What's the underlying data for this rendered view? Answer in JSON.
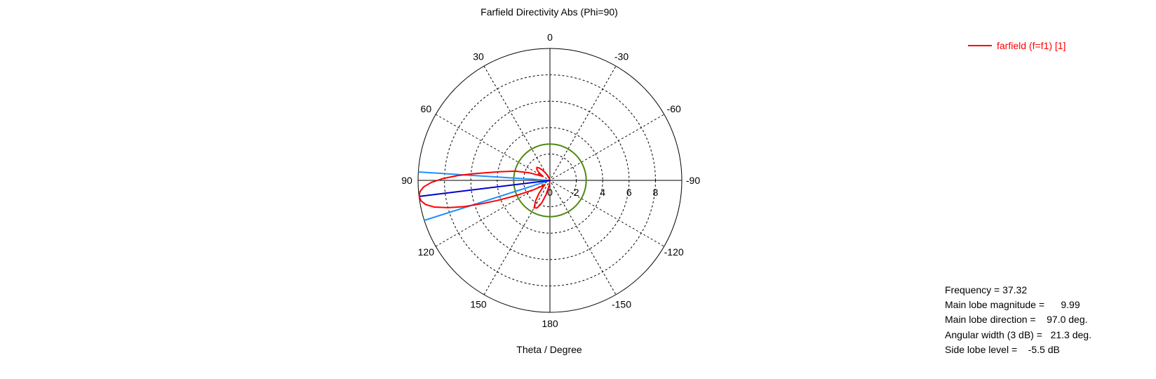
{
  "chart_data": {
    "type": "polar",
    "title": "Farfield Directivity Abs (Phi=90)",
    "xlabel": "Theta / Degree",
    "angle_tick_labels": [
      "0",
      "-30",
      "-60",
      "-90",
      "-120",
      "-150",
      "180",
      "150",
      "120",
      "90",
      "60",
      "30"
    ],
    "radial_tick_labels": [
      "0",
      "2",
      "4",
      "6",
      "8"
    ],
    "rlim": [
      0,
      10
    ],
    "grid": true,
    "legend_position": "top-right",
    "series": [
      {
        "name": "farfield (f=f1) [1]",
        "color": "#ff0000",
        "theta": [
          0,
          5,
          10,
          15,
          20,
          25,
          30,
          35,
          40,
          45,
          50,
          55,
          60,
          65,
          70,
          75,
          80,
          83,
          85,
          87,
          89,
          91,
          93,
          95,
          97,
          99,
          101,
          103,
          105,
          107,
          109,
          111,
          113,
          115,
          120,
          125,
          130,
          135,
          140,
          145,
          150,
          155,
          160,
          165,
          170,
          175,
          180
        ],
        "r": [
          0.2,
          0.2,
          0.15,
          0.1,
          0.2,
          0.4,
          0.6,
          0.9,
          1.2,
          1.4,
          1.3,
          1.0,
          0.6,
          0.9,
          1.7,
          2.7,
          3.8,
          4.8,
          5.8,
          7.0,
          8.1,
          9.0,
          9.6,
          9.9,
          9.99,
          9.9,
          9.6,
          9.0,
          8.0,
          6.8,
          5.4,
          4.2,
          3.2,
          2.5,
          1.4,
          0.8,
          0.5,
          0.8,
          1.3,
          1.9,
          2.4,
          2.3,
          1.8,
          1.1,
          0.5,
          0.2,
          0.15
        ]
      }
    ],
    "markers": {
      "main_lobe": {
        "theta": 97.0,
        "r": 9.99,
        "color": "#0000cd"
      },
      "beamwidth_edges": [
        {
          "theta": 86.35,
          "r": 10.0,
          "color": "#1e90ff"
        },
        {
          "theta": 107.65,
          "r": 10.0,
          "color": "#1e90ff"
        }
      ],
      "threshold_circle": {
        "r": 2.75,
        "color": "#4f8a10"
      }
    }
  },
  "legend": {
    "label": "farfield (f=f1) [1]"
  },
  "info": {
    "frequency": "Frequency = 37.32",
    "magnitude": "Main lobe magnitude =      9.99",
    "direction": "Main lobe direction =    97.0 deg.",
    "width": "Angular width (3 dB) =   21.3 deg.",
    "sidelobe": "Side lobe level =    -5.5 dB"
  },
  "colors": {
    "curve": "#ff0000",
    "main_lobe": "#0000cd",
    "beam_edges": "#1e90ff",
    "threshold": "#4f8a10"
  }
}
